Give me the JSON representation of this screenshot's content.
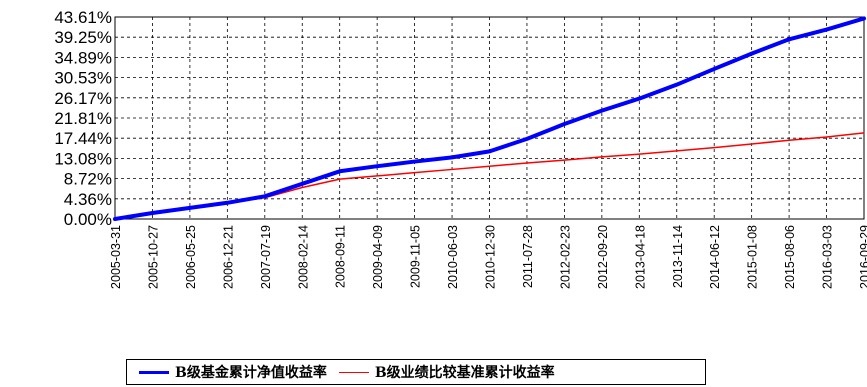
{
  "chart_data": {
    "type": "line",
    "title": "",
    "xlabel": "",
    "ylabel": "",
    "grid": true,
    "legend_position": "bottom",
    "x_ticks": [
      "2005-03-31",
      "2005-10-27",
      "2006-05-25",
      "2006-12-21",
      "2007-07-19",
      "2008-02-14",
      "2008-09-11",
      "2009-04-09",
      "2009-11-05",
      "2010-06-03",
      "2010-12-30",
      "2011-07-28",
      "2012-02-23",
      "2012-09-20",
      "2013-04-18",
      "2013-11-14",
      "2014-06-12",
      "2015-01-08",
      "2015-08-06",
      "2016-03-03",
      "2016-09-29"
    ],
    "y_ticks": [
      "0.00%",
      "4.36%",
      "8.72%",
      "13.08%",
      "17.44%",
      "21.81%",
      "26.17%",
      "30.53%",
      "34.89%",
      "39.25%",
      "43.61%"
    ],
    "ylim": [
      0,
      43.61
    ],
    "y_unit": "%",
    "series": [
      {
        "name": "B级基金累计净值收益率",
        "color": "#0000ff",
        "x": [
          "2005-03-31",
          "2005-10-27",
          "2006-05-25",
          "2006-12-21",
          "2007-07-19",
          "2008-02-14",
          "2008-09-11",
          "2009-04-09",
          "2009-11-05",
          "2010-06-03",
          "2010-12-30",
          "2011-07-28",
          "2012-02-23",
          "2012-09-20",
          "2013-04-18",
          "2013-11-14",
          "2014-06-12",
          "2015-01-08",
          "2015-08-06",
          "2016-03-03",
          "2016-09-29"
        ],
        "values": [
          0.0,
          1.3,
          2.4,
          3.5,
          4.9,
          7.6,
          10.3,
          11.4,
          12.4,
          13.3,
          14.6,
          17.3,
          20.5,
          23.4,
          26.0,
          29.0,
          32.4,
          35.7,
          38.8,
          40.9,
          43.3
        ]
      },
      {
        "name": "B级业绩比较基准累计收益率",
        "color": "#ff0000",
        "x": [
          "2005-03-31",
          "2005-10-27",
          "2006-05-25",
          "2006-12-21",
          "2007-07-19",
          "2008-02-14",
          "2008-09-11",
          "2009-04-09",
          "2009-11-05",
          "2010-06-03",
          "2010-12-30",
          "2011-07-28",
          "2012-02-23",
          "2012-09-20",
          "2013-04-18",
          "2013-11-14",
          "2014-06-12",
          "2015-01-08",
          "2015-08-06",
          "2016-03-03",
          "2016-09-29"
        ],
        "values": [
          0.0,
          1.2,
          2.2,
          3.4,
          4.6,
          6.8,
          8.6,
          9.3,
          10.0,
          10.7,
          11.4,
          12.1,
          12.7,
          13.4,
          14.0,
          14.7,
          15.4,
          16.2,
          17.0,
          17.7,
          18.6
        ]
      }
    ]
  }
}
